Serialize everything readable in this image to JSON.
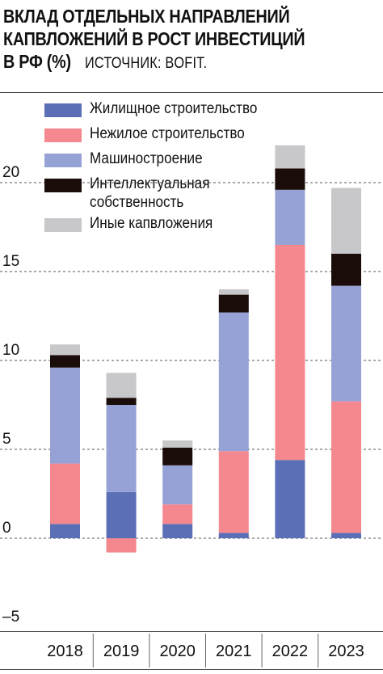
{
  "title": {
    "line1": "ВКЛАД ОТДЕЛЬНЫХ НАПРАВЛЕНИЙ",
    "line2": "КАПВЛОЖЕНИЙ В РОСТ ИНВЕСТИЦИЙ",
    "line3": "В РФ (%)",
    "source": "ИСТОЧНИК: BOFIT."
  },
  "chart_data": {
    "type": "bar",
    "stacked": true,
    "categories": [
      "2018",
      "2019",
      "2020",
      "2021",
      "2022",
      "2023"
    ],
    "series": [
      {
        "name": "Жилищное строительство",
        "color": "#5b6fb7",
        "values": [
          0.8,
          2.6,
          0.8,
          0.3,
          4.4,
          0.3
        ]
      },
      {
        "name": "Нежилое строительство",
        "color": "#f4888e",
        "values": [
          3.4,
          -0.8,
          1.1,
          4.6,
          12.1,
          7.4
        ]
      },
      {
        "name": "Машиностроение",
        "color": "#96a2d6",
        "values": [
          5.4,
          4.9,
          2.2,
          7.8,
          3.1,
          6.5
        ]
      },
      {
        "name": "Интеллектуальная собственность",
        "color": "#1a0c08",
        "values": [
          0.7,
          0.4,
          1.0,
          1.0,
          1.2,
          1.8
        ]
      },
      {
        "name": "Иные капвложения",
        "color": "#c8c8ca",
        "values": [
          0.6,
          1.4,
          0.4,
          0.3,
          1.3,
          3.7
        ]
      }
    ],
    "yticks": [
      "20",
      "15",
      "10",
      "5",
      "0",
      "–5"
    ],
    "ylim": [
      -5,
      25
    ],
    "grid": "dashed horizontal",
    "legend": "top-left"
  }
}
